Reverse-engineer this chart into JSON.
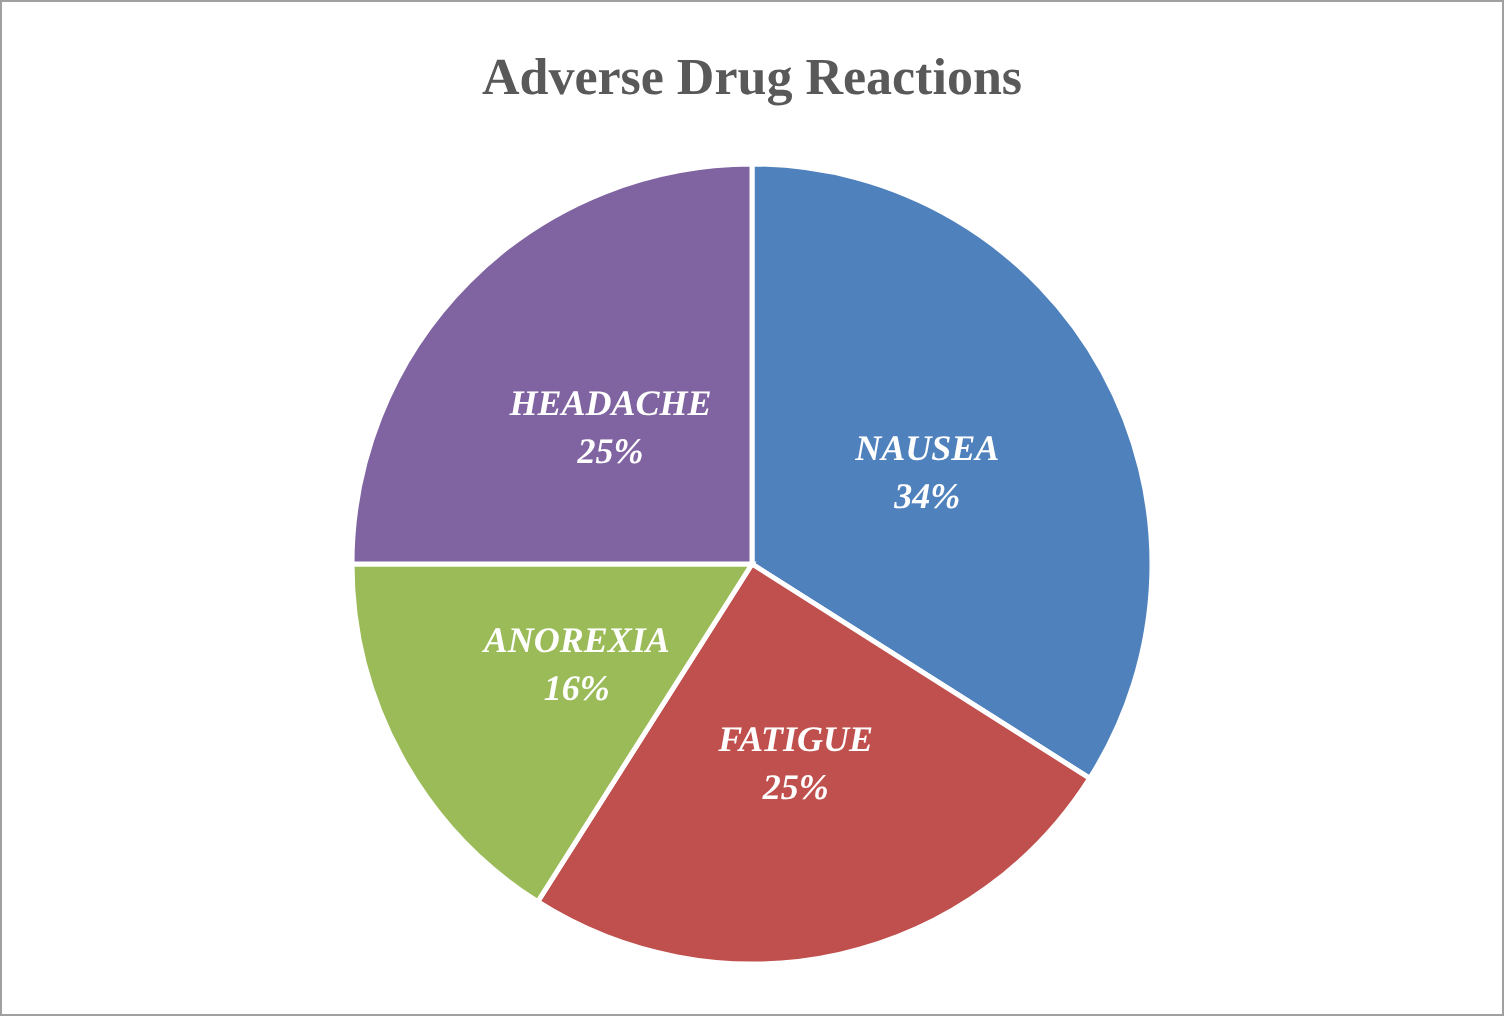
{
  "chart_data": {
    "type": "pie",
    "title": "Adverse Drug Reactions",
    "categories": [
      "NAUSEA",
      "FATIGUE",
      "ANOREXIA",
      "HEADACHE"
    ],
    "values": [
      34,
      25,
      16,
      25
    ],
    "value_labels": [
      "34%",
      "25%",
      "16%",
      "25%"
    ],
    "colors": [
      "#4f81bd",
      "#c0504d",
      "#9bbb59",
      "#8064a2"
    ],
    "legend": false
  }
}
